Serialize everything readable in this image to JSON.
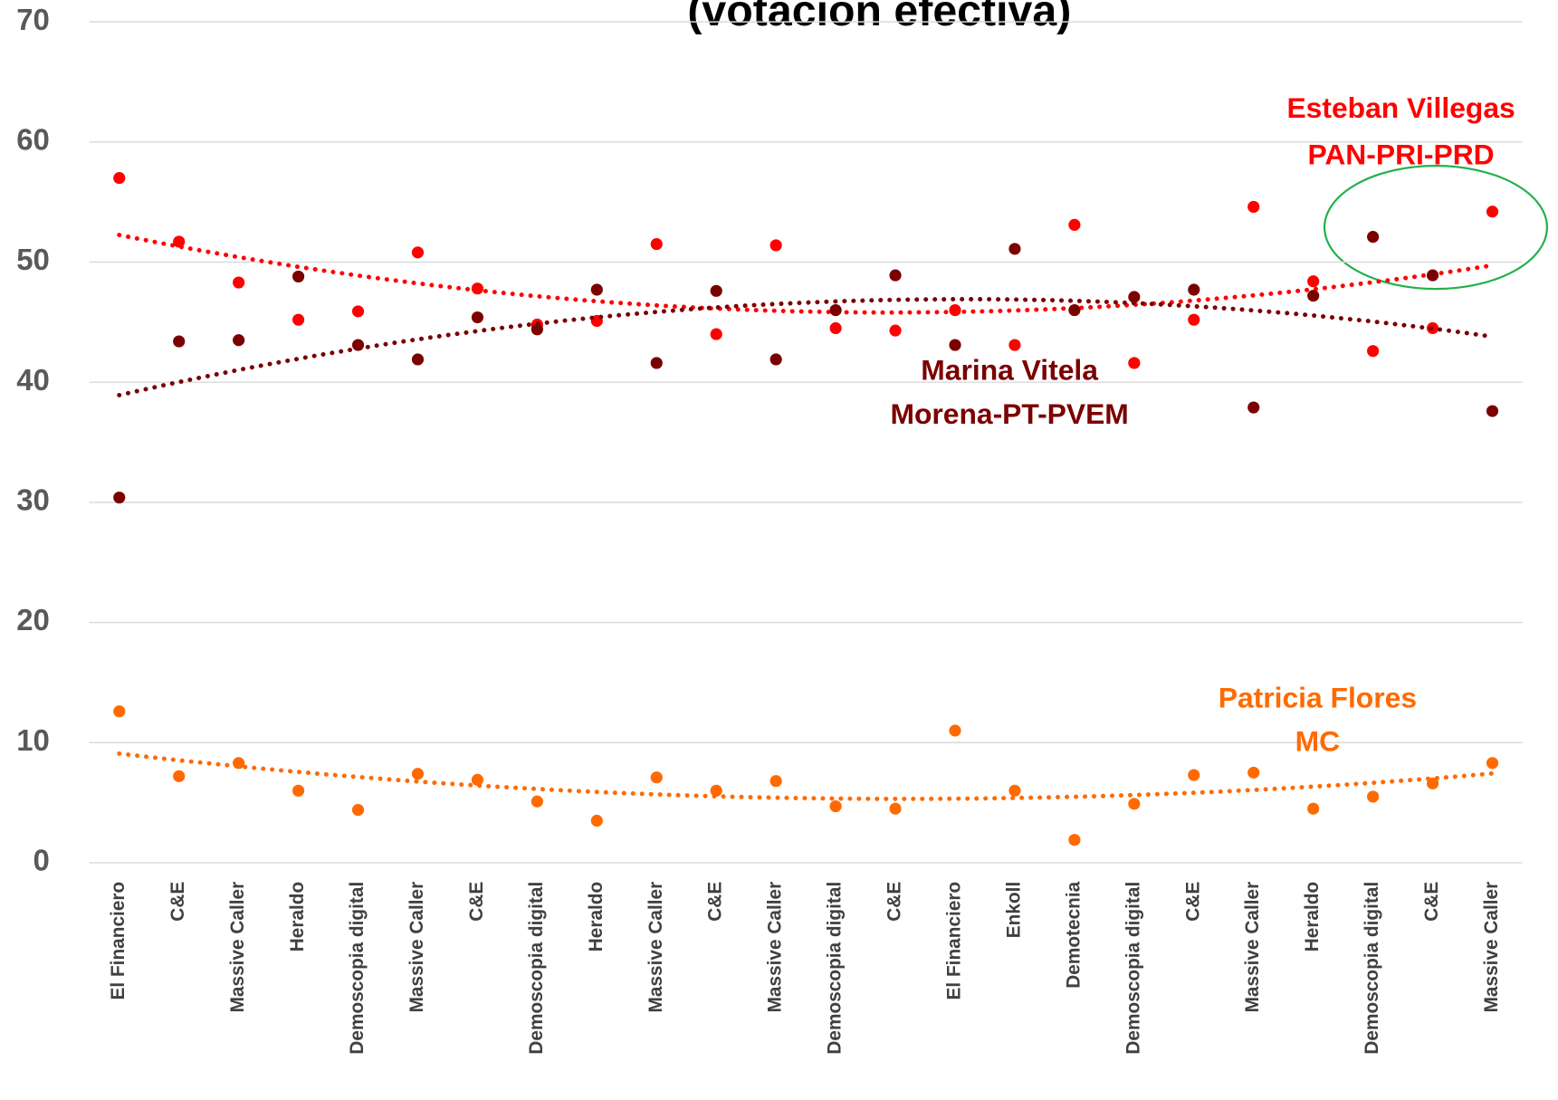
{
  "chart_data": {
    "type": "scatter",
    "title": "(votación efectiva)",
    "categories": [
      "El Financiero",
      "C&E",
      "Massive Caller",
      "Heraldo",
      "Demoscopia digital",
      "Massive Caller",
      "C&E",
      "Demoscopia digital",
      "Heraldo",
      "Massive Caller",
      "C&E",
      "Massive Caller",
      "Demoscopia digital",
      "C&E",
      "El Financiero",
      "Enkoll",
      "Demotecnia",
      "Demoscopia digital",
      "C&E",
      "Massive Caller",
      "Heraldo",
      "Demoscopia digital",
      "C&E",
      "Massive Caller"
    ],
    "series": [
      {
        "name": "Esteban Villegas",
        "party": "PAN-PRI-PRD",
        "color": "#ff0000",
        "values": [
          57.0,
          51.7,
          48.3,
          45.2,
          45.9,
          50.8,
          47.8,
          44.8,
          45.1,
          51.5,
          44.0,
          51.4,
          44.5,
          44.3,
          46.0,
          43.1,
          53.1,
          41.6,
          45.2,
          54.6,
          48.4,
          42.6,
          44.5,
          54.2
        ]
      },
      {
        "name": "Marina Vitela",
        "party": "Morena-PT-PVEM",
        "color": "#7b0000",
        "values": [
          30.4,
          43.4,
          43.5,
          48.8,
          43.1,
          41.9,
          45.4,
          44.4,
          47.7,
          41.6,
          47.6,
          41.9,
          46.0,
          48.9,
          43.1,
          51.1,
          46.0,
          47.1,
          47.7,
          37.9,
          47.2,
          52.1,
          48.9,
          37.6
        ]
      },
      {
        "name": "Patricia Flores",
        "party": "MC",
        "color": "#ff6a00",
        "values": [
          12.6,
          7.2,
          8.3,
          6.0,
          4.4,
          7.4,
          6.9,
          5.1,
          3.5,
          7.1,
          6.0,
          6.8,
          4.7,
          4.5,
          11.0,
          6.0,
          1.9,
          4.9,
          7.3,
          7.5,
          4.5,
          5.5,
          6.6,
          8.3
        ]
      }
    ],
    "ylim": [
      0,
      70
    ],
    "yticks": [
      0,
      10,
      20,
      30,
      40,
      50,
      60,
      70
    ],
    "grid": true,
    "trendline": "polynomial"
  }
}
